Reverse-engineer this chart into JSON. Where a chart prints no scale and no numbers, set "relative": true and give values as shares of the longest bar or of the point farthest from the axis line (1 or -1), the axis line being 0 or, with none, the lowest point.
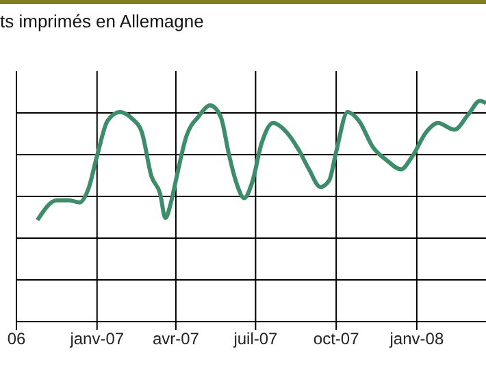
{
  "chart_data": {
    "type": "line",
    "title": "ts imprimés en Allemagne",
    "relative": true,
    "grid": true,
    "x": [
      "2006-10-25",
      "2006-11-16",
      "2006-11-30",
      "2006-12-12",
      "2006-12-22",
      "2007-01-01",
      "2007-01-13",
      "2007-01-27",
      "2007-02-10",
      "2007-02-21",
      "2007-03-04",
      "2007-03-14",
      "2007-03-20",
      "2007-03-27",
      "2007-04-01",
      "2007-04-13",
      "2007-04-27",
      "2007-05-10",
      "2007-05-22",
      "2007-06-01",
      "2007-06-09",
      "2007-06-18",
      "2007-06-27",
      "2007-07-08",
      "2007-07-21",
      "2007-08-05",
      "2007-08-19",
      "2007-08-31",
      "2007-09-13",
      "2007-09-23",
      "2007-10-01",
      "2007-10-14",
      "2007-10-27",
      "2007-11-12",
      "2007-11-28",
      "2007-12-14",
      "2007-12-27",
      "2008-01-12",
      "2008-01-25",
      "2008-02-13",
      "2008-02-29",
      "2008-03-13",
      "2008-03-20"
    ],
    "series": [
      {
        "color": "#3d8c6a",
        "values": [
          0.46,
          0.55,
          0.55,
          0.54,
          0.6,
          0.75,
          0.91,
          0.95,
          0.92,
          0.86,
          0.66,
          0.58,
          0.47,
          0.55,
          0.64,
          0.84,
          0.93,
          0.98,
          0.93,
          0.75,
          0.63,
          0.56,
          0.63,
          0.81,
          0.9,
          0.86,
          0.78,
          0.69,
          0.61,
          0.64,
          0.77,
          0.95,
          0.91,
          0.79,
          0.73,
          0.69,
          0.75,
          0.86,
          0.9,
          0.87,
          0.94,
          1.0,
          0.99
        ]
      }
    ],
    "xlim": [
      "2006-10-01",
      "2008-03-20"
    ],
    "xticks": [
      {
        "value": "2006-10-01",
        "label": "06"
      },
      {
        "value": "2007-01-01",
        "label": "janv-07"
      },
      {
        "value": "2007-04-01",
        "label": "avr-07"
      },
      {
        "value": "2007-07-01",
        "label": "juil-07"
      },
      {
        "value": "2007-10-01",
        "label": "oct-07"
      },
      {
        "value": "2008-01-01",
        "label": "janv-08"
      }
    ]
  }
}
